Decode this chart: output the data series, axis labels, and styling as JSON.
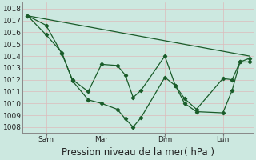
{
  "xlabel": "Pression niveau de la mer( hPa )",
  "background_color": "#cce8e0",
  "grid_color": "#ddbbbb",
  "line_color": "#1a5c2a",
  "ylim": [
    1007.5,
    1018.5
  ],
  "yticks": [
    1008,
    1009,
    1010,
    1011,
    1012,
    1013,
    1014,
    1015,
    1016,
    1017,
    1018
  ],
  "day_labels": [
    "Sam",
    "Mar",
    "Dim",
    "Lun"
  ],
  "day_positions": [
    18,
    60,
    108,
    152
  ],
  "xlim": [
    0,
    175
  ],
  "series1_x": [
    4,
    18,
    30,
    38,
    50,
    60,
    72,
    78,
    84,
    90,
    108,
    116,
    123,
    132,
    152,
    159,
    165,
    172
  ],
  "series1_y": [
    1017.4,
    1016.6,
    1014.2,
    1012.0,
    1011.0,
    1013.3,
    1013.2,
    1012.4,
    1010.5,
    1011.1,
    1014.0,
    1011.5,
    1010.4,
    1009.5,
    1012.1,
    1012.0,
    1013.5,
    1013.5
  ],
  "series2_x": [
    4,
    18,
    30,
    38,
    50,
    60,
    72,
    78,
    84,
    90,
    108,
    116,
    123,
    132,
    152,
    159,
    165,
    172
  ],
  "series2_y": [
    1017.4,
    1015.8,
    1014.3,
    1011.9,
    1010.3,
    1010.0,
    1009.5,
    1008.7,
    1008.0,
    1008.8,
    1012.2,
    1011.5,
    1010.0,
    1009.3,
    1009.2,
    1011.1,
    1013.5,
    1013.8
  ],
  "series3_x": [
    4,
    172
  ],
  "series3_y": [
    1017.4,
    1014.0
  ],
  "tick_fontsize": 6.5,
  "xlabel_fontsize": 8.5
}
